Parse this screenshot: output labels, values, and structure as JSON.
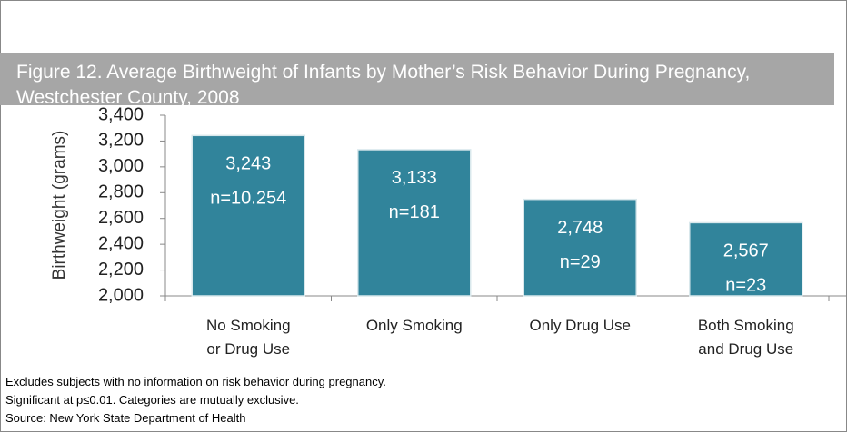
{
  "chart_data": {
    "type": "bar",
    "title": "Figure 12.  Average Birthweight of Infants by Mother’s Risk Behavior During Pregnancy, Westchester County, 2008",
    "ylabel": "Birthweight (grams)",
    "categories": [
      "No Smoking\nor Drug Use",
      "Only Smoking",
      "Only Drug Use",
      "Both Smoking\nand Drug Use"
    ],
    "values": [
      3243,
      3133,
      2748,
      2567
    ],
    "value_labels": [
      "3,243",
      "3,133",
      "2,748",
      "2,567"
    ],
    "n_labels": [
      "n=10.254",
      "n=181",
      "n=29",
      "n=23"
    ],
    "color": "#31849b",
    "ylim": [
      2000,
      3400
    ],
    "yticks": [
      {
        "value": 2000,
        "label": "2,000"
      },
      {
        "value": 2200,
        "label": "2,200"
      },
      {
        "value": 2400,
        "label": "2,400"
      },
      {
        "value": 2600,
        "label": "2,600"
      },
      {
        "value": 2800,
        "label": "2,800"
      },
      {
        "value": 3000,
        "label": "3,000"
      },
      {
        "value": 3200,
        "label": "3,200"
      },
      {
        "value": 3400,
        "label": "3,400"
      }
    ],
    "grid": false,
    "notes": [
      "Excludes subjects with no information on risk behavior during pregnancy.",
      "Significant at p≤0.01.  Categories are mutually exclusive.",
      "Source: New York State Department of Health"
    ]
  }
}
